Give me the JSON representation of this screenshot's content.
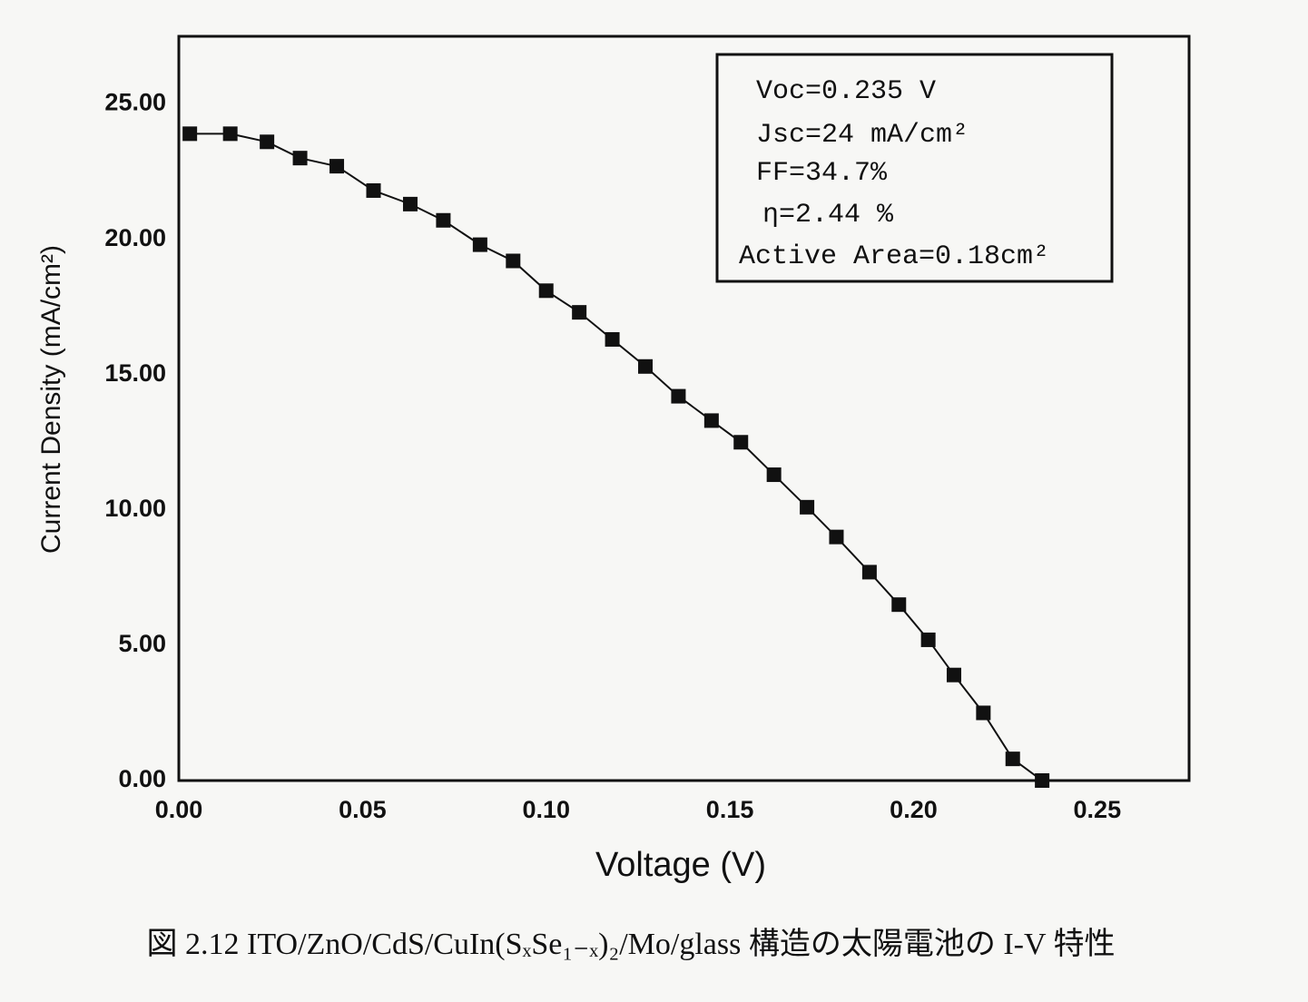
{
  "chart_data": {
    "type": "line",
    "x_label": "Voltage (V)",
    "y_label": "Current Density (mA/cm²)",
    "caption": "図 2.12 ITO/ZnO/CdS/CuIn(SₓSe₁₋ₓ)₂/Mo/glass 構造の太陽電池の I-V 特性",
    "annotations": [
      "Voc=0.235 V",
      "Jsc=24 mA/cm²",
      "FF=34.7%",
      "η=2.44 %",
      "Active Area=0.18cm²"
    ],
    "x": [
      0.003,
      0.014,
      0.024,
      0.033,
      0.043,
      0.053,
      0.063,
      0.072,
      0.082,
      0.091,
      0.1,
      0.109,
      0.118,
      0.127,
      0.136,
      0.145,
      0.153,
      0.162,
      0.171,
      0.179,
      0.188,
      0.196,
      0.204,
      0.211,
      0.219,
      0.227,
      0.235
    ],
    "series": [
      {
        "color": "#111111",
        "values": [
          23.9,
          23.9,
          23.6,
          23.0,
          22.7,
          21.8,
          21.3,
          20.7,
          19.8,
          19.2,
          18.1,
          17.3,
          16.3,
          15.3,
          14.2,
          13.3,
          12.5,
          11.3,
          10.1,
          9.0,
          7.7,
          6.5,
          5.2,
          3.9,
          2.5,
          0.8,
          0.0
        ]
      }
    ],
    "xlim": [
      0,
      0.275
    ],
    "ylim": [
      0,
      27.5
    ],
    "xticks": [
      {
        "value": 0,
        "label": "0.00"
      },
      {
        "value": 0.05,
        "label": "0.05"
      },
      {
        "value": 0.1,
        "label": "0.10"
      },
      {
        "value": 0.15,
        "label": "0.15"
      },
      {
        "value": 0.2,
        "label": "0.20"
      },
      {
        "value": 0.25,
        "label": "0.25"
      }
    ],
    "yticks": [
      {
        "value": 0,
        "label": "0.00"
      },
      {
        "value": 5,
        "label": "5.00"
      },
      {
        "value": 10,
        "label": "10.00"
      },
      {
        "value": 15,
        "label": "15.00"
      },
      {
        "value": 20,
        "label": "20.00"
      },
      {
        "value": 25,
        "label": "25.00"
      }
    ],
    "grid": false
  }
}
